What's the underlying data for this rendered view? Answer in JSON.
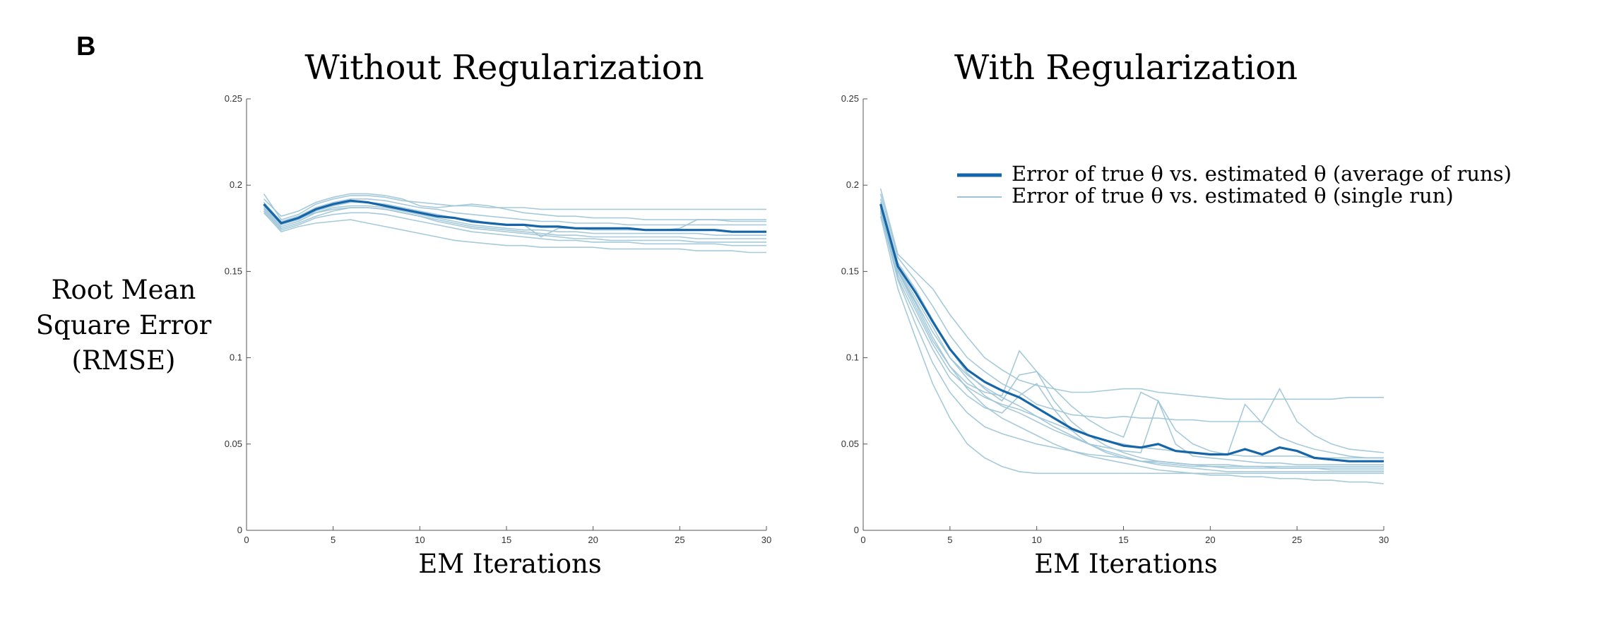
{
  "panel_label": "B",
  "y_label_lines": [
    "Root Mean",
    "Square Error",
    "(RMSE)"
  ],
  "legend": {
    "average": "Error of true θ vs. estimated θ (average of runs)",
    "single": "Error of true θ vs. estimated θ (single run)"
  },
  "colors": {
    "average": "#1565a8",
    "single": "#9cc4d6"
  },
  "chart_data": [
    {
      "type": "line",
      "title": "Without Regularization",
      "xlabel": "EM Iterations",
      "xlim": [
        0,
        30
      ],
      "ylim": [
        0,
        0.25
      ],
      "xticks": [
        0,
        5,
        10,
        15,
        20,
        25,
        30
      ],
      "yticks": [
        0,
        0.05,
        0.1,
        0.15,
        0.2,
        0.25
      ],
      "xtick_labels": [
        "0",
        "5",
        "10",
        "15",
        "20",
        "25",
        "30"
      ],
      "ytick_labels": [
        "0",
        "0.05",
        "0.1",
        "0.15",
        "0.2",
        "0.25"
      ],
      "x": [
        1,
        2,
        3,
        4,
        5,
        6,
        7,
        8,
        9,
        10,
        11,
        12,
        13,
        14,
        15,
        16,
        17,
        18,
        19,
        20,
        21,
        22,
        23,
        24,
        25,
        26,
        27,
        28,
        29,
        30
      ],
      "average": [
        0.189,
        0.178,
        0.181,
        0.186,
        0.189,
        0.191,
        0.19,
        0.188,
        0.186,
        0.184,
        0.182,
        0.181,
        0.179,
        0.178,
        0.177,
        0.177,
        0.176,
        0.176,
        0.175,
        0.175,
        0.175,
        0.175,
        0.174,
        0.174,
        0.174,
        0.174,
        0.174,
        0.173,
        0.173,
        0.173
      ],
      "runs": [
        [
          0.195,
          0.18,
          0.183,
          0.189,
          0.192,
          0.194,
          0.194,
          0.193,
          0.191,
          0.19,
          0.189,
          0.188,
          0.188,
          0.187,
          0.187,
          0.187,
          0.186,
          0.186,
          0.186,
          0.186,
          0.186,
          0.186,
          0.186,
          0.186,
          0.186,
          0.186,
          0.186,
          0.186,
          0.186,
          0.186
        ],
        [
          0.192,
          0.182,
          0.185,
          0.19,
          0.193,
          0.195,
          0.195,
          0.194,
          0.192,
          0.188,
          0.187,
          0.188,
          0.189,
          0.188,
          0.186,
          0.184,
          0.183,
          0.182,
          0.182,
          0.181,
          0.181,
          0.181,
          0.18,
          0.18,
          0.18,
          0.18,
          0.18,
          0.18,
          0.18,
          0.18
        ],
        [
          0.19,
          0.179,
          0.182,
          0.187,
          0.19,
          0.192,
          0.192,
          0.191,
          0.189,
          0.187,
          0.186,
          0.184,
          0.183,
          0.182,
          0.181,
          0.18,
          0.179,
          0.179,
          0.178,
          0.178,
          0.178,
          0.177,
          0.177,
          0.177,
          0.177,
          0.177,
          0.177,
          0.177,
          0.177,
          0.177
        ],
        [
          0.188,
          0.177,
          0.18,
          0.185,
          0.188,
          0.19,
          0.19,
          0.189,
          0.187,
          0.185,
          0.183,
          0.181,
          0.18,
          0.178,
          0.177,
          0.177,
          0.17,
          0.175,
          0.175,
          0.174,
          0.174,
          0.174,
          0.174,
          0.174,
          0.175,
          0.18,
          0.18,
          0.179,
          0.179,
          0.179
        ],
        [
          0.187,
          0.176,
          0.179,
          0.184,
          0.187,
          0.188,
          0.188,
          0.187,
          0.185,
          0.183,
          0.181,
          0.179,
          0.177,
          0.176,
          0.175,
          0.174,
          0.174,
          0.173,
          0.173,
          0.172,
          0.172,
          0.172,
          0.172,
          0.172,
          0.172,
          0.172,
          0.171,
          0.171,
          0.171,
          0.171
        ],
        [
          0.186,
          0.175,
          0.178,
          0.182,
          0.185,
          0.187,
          0.187,
          0.186,
          0.184,
          0.182,
          0.18,
          0.178,
          0.176,
          0.175,
          0.174,
          0.173,
          0.172,
          0.171,
          0.171,
          0.17,
          0.17,
          0.17,
          0.17,
          0.17,
          0.17,
          0.169,
          0.169,
          0.169,
          0.169,
          0.169
        ],
        [
          0.19,
          0.178,
          0.181,
          0.184,
          0.186,
          0.187,
          0.187,
          0.186,
          0.184,
          0.182,
          0.179,
          0.177,
          0.175,
          0.174,
          0.173,
          0.172,
          0.171,
          0.17,
          0.169,
          0.169,
          0.168,
          0.168,
          0.168,
          0.168,
          0.168,
          0.167,
          0.167,
          0.167,
          0.167,
          0.167
        ],
        [
          0.185,
          0.174,
          0.177,
          0.181,
          0.183,
          0.184,
          0.184,
          0.183,
          0.181,
          0.179,
          0.177,
          0.175,
          0.173,
          0.172,
          0.171,
          0.17,
          0.169,
          0.168,
          0.168,
          0.167,
          0.167,
          0.167,
          0.166,
          0.166,
          0.166,
          0.166,
          0.166,
          0.165,
          0.165,
          0.165
        ],
        [
          0.184,
          0.173,
          0.176,
          0.178,
          0.179,
          0.18,
          0.178,
          0.176,
          0.174,
          0.172,
          0.17,
          0.168,
          0.167,
          0.166,
          0.165,
          0.165,
          0.164,
          0.164,
          0.164,
          0.164,
          0.163,
          0.163,
          0.163,
          0.163,
          0.163,
          0.162,
          0.162,
          0.162,
          0.161,
          0.161
        ]
      ]
    },
    {
      "type": "line",
      "title": "With Regularization",
      "xlabel": "EM Iterations",
      "xlim": [
        0,
        30
      ],
      "ylim": [
        0,
        0.25
      ],
      "xticks": [
        0,
        5,
        10,
        15,
        20,
        25,
        30
      ],
      "yticks": [
        0,
        0.05,
        0.1,
        0.15,
        0.2,
        0.25
      ],
      "xtick_labels": [
        "0",
        "5",
        "10",
        "15",
        "20",
        "25",
        "30"
      ],
      "ytick_labels": [
        "0",
        "0.05",
        "0.1",
        "0.15",
        "0.2",
        "0.25"
      ],
      "x": [
        1,
        2,
        3,
        4,
        5,
        6,
        7,
        8,
        9,
        10,
        11,
        12,
        13,
        14,
        15,
        16,
        17,
        18,
        19,
        20,
        21,
        22,
        23,
        24,
        25,
        26,
        27,
        28,
        29,
        30
      ],
      "average": [
        0.189,
        0.153,
        0.138,
        0.121,
        0.105,
        0.093,
        0.086,
        0.081,
        0.077,
        0.071,
        0.065,
        0.059,
        0.055,
        0.052,
        0.049,
        0.048,
        0.05,
        0.046,
        0.045,
        0.044,
        0.044,
        0.047,
        0.044,
        0.048,
        0.046,
        0.042,
        0.041,
        0.04,
        0.04,
        0.04
      ],
      "runs": [
        [
          0.198,
          0.16,
          0.15,
          0.14,
          0.125,
          0.112,
          0.1,
          0.093,
          0.087,
          0.084,
          0.082,
          0.08,
          0.08,
          0.081,
          0.082,
          0.082,
          0.08,
          0.079,
          0.078,
          0.077,
          0.076,
          0.076,
          0.076,
          0.076,
          0.076,
          0.076,
          0.076,
          0.077,
          0.077,
          0.077
        ],
        [
          0.195,
          0.158,
          0.145,
          0.13,
          0.113,
          0.1,
          0.092,
          0.085,
          0.08,
          0.073,
          0.07,
          0.067,
          0.066,
          0.065,
          0.066,
          0.065,
          0.065,
          0.064,
          0.064,
          0.063,
          0.063,
          0.063,
          0.063,
          0.082,
          0.063,
          0.055,
          0.05,
          0.047,
          0.046,
          0.045
        ],
        [
          0.192,
          0.155,
          0.14,
          0.122,
          0.105,
          0.091,
          0.082,
          0.075,
          0.09,
          0.092,
          0.082,
          0.072,
          0.064,
          0.058,
          0.054,
          0.08,
          0.075,
          0.058,
          0.05,
          0.046,
          0.044,
          0.073,
          0.062,
          0.054,
          0.05,
          0.047,
          0.045,
          0.043,
          0.042,
          0.042
        ],
        [
          0.19,
          0.152,
          0.135,
          0.118,
          0.1,
          0.088,
          0.078,
          0.072,
          0.068,
          0.063,
          0.058,
          0.054,
          0.05,
          0.048,
          0.046,
          0.045,
          0.075,
          0.05,
          0.043,
          0.042,
          0.041,
          0.04,
          0.039,
          0.039,
          0.038,
          0.038,
          0.038,
          0.038,
          0.038,
          0.038
        ],
        [
          0.188,
          0.15,
          0.132,
          0.112,
          0.095,
          0.085,
          0.08,
          0.078,
          0.104,
          0.092,
          0.075,
          0.063,
          0.055,
          0.049,
          0.045,
          0.042,
          0.04,
          0.039,
          0.038,
          0.037,
          0.037,
          0.037,
          0.037,
          0.037,
          0.037,
          0.037,
          0.037,
          0.037,
          0.037,
          0.037
        ],
        [
          0.186,
          0.148,
          0.128,
          0.108,
          0.092,
          0.083,
          0.077,
          0.073,
          0.07,
          0.066,
          0.062,
          0.058,
          0.055,
          0.052,
          0.05,
          0.048,
          0.047,
          0.046,
          0.045,
          0.044,
          0.044,
          0.043,
          0.043,
          0.043,
          0.043,
          0.042,
          0.042,
          0.042,
          0.042,
          0.042
        ],
        [
          0.185,
          0.146,
          0.125,
          0.105,
          0.088,
          0.078,
          0.071,
          0.068,
          0.078,
          0.085,
          0.07,
          0.058,
          0.05,
          0.045,
          0.042,
          0.04,
          0.039,
          0.038,
          0.037,
          0.037,
          0.036,
          0.036,
          0.036,
          0.036,
          0.036,
          0.036,
          0.036,
          0.036,
          0.036,
          0.036
        ],
        [
          0.184,
          0.145,
          0.12,
          0.097,
          0.08,
          0.068,
          0.06,
          0.056,
          0.053,
          0.05,
          0.048,
          0.046,
          0.044,
          0.043,
          0.042,
          0.04,
          0.04,
          0.039,
          0.038,
          0.038,
          0.038,
          0.037,
          0.037,
          0.036,
          0.036,
          0.036,
          0.035,
          0.035,
          0.035,
          0.035
        ],
        [
          0.182,
          0.14,
          0.112,
          0.085,
          0.065,
          0.05,
          0.042,
          0.037,
          0.034,
          0.033,
          0.033,
          0.033,
          0.033,
          0.033,
          0.033,
          0.033,
          0.033,
          0.033,
          0.033,
          0.033,
          0.033,
          0.033,
          0.033,
          0.033,
          0.033,
          0.033,
          0.033,
          0.033,
          0.033,
          0.033
        ],
        [
          0.187,
          0.15,
          0.13,
          0.11,
          0.095,
          0.082,
          0.072,
          0.065,
          0.06,
          0.055,
          0.05,
          0.046,
          0.043,
          0.041,
          0.039,
          0.037,
          0.035,
          0.034,
          0.033,
          0.032,
          0.032,
          0.031,
          0.031,
          0.03,
          0.03,
          0.029,
          0.029,
          0.028,
          0.028,
          0.027
        ],
        [
          0.189,
          0.151,
          0.133,
          0.115,
          0.1,
          0.09,
          0.083,
          0.077,
          0.072,
          0.066,
          0.06,
          0.055,
          0.05,
          0.046,
          0.043,
          0.04,
          0.038,
          0.037,
          0.036,
          0.035,
          0.034,
          0.034,
          0.034,
          0.034,
          0.034,
          0.034,
          0.034,
          0.034,
          0.034,
          0.034
        ]
      ]
    }
  ]
}
